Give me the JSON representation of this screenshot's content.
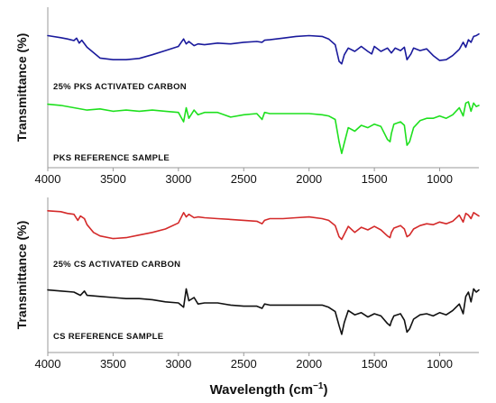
{
  "x_axis_label": "Wavelength (cm",
  "x_axis_label_sup": "−1",
  "x_axis_label_end": ")",
  "chart_data": [
    {
      "type": "line",
      "ylabel": "Transmittance (%)",
      "xlabel": "",
      "xlim": [
        4000,
        700
      ],
      "x_tick_labels": [
        "4000",
        "3500",
        "3000",
        "2500",
        "2000",
        "1500",
        "1000"
      ],
      "x_ticks": [
        4000,
        3500,
        3000,
        2500,
        2000,
        1500,
        1000
      ],
      "y_scale": "arbitrary (offset traces, no y ticks)",
      "series": [
        {
          "name": "25% PKS ACTIVATED CARBON",
          "color": "#1a1a9c",
          "x": [
            4000,
            3900,
            3850,
            3800,
            3780,
            3760,
            3740,
            3700,
            3600,
            3500,
            3400,
            3300,
            3200,
            3100,
            3000,
            2960,
            2940,
            2920,
            2880,
            2850,
            2800,
            2700,
            2600,
            2500,
            2400,
            2360,
            2340,
            2300,
            2200,
            2100,
            2000,
            1900,
            1850,
            1800,
            1770,
            1750,
            1730,
            1700,
            1650,
            1600,
            1550,
            1520,
            1500,
            1450,
            1400,
            1370,
            1340,
            1300,
            1270,
            1250,
            1220,
            1200,
            1150,
            1100,
            1050,
            1000,
            950,
            900,
            850,
            820,
            800,
            780,
            760,
            740,
            720,
            700
          ],
          "y": [
            0.88,
            0.83,
            0.8,
            0.76,
            0.82,
            0.7,
            0.77,
            0.6,
            0.34,
            0.3,
            0.3,
            0.33,
            0.42,
            0.52,
            0.62,
            0.8,
            0.68,
            0.74,
            0.64,
            0.68,
            0.66,
            0.7,
            0.68,
            0.72,
            0.74,
            0.72,
            0.77,
            0.78,
            0.82,
            0.86,
            0.88,
            0.86,
            0.8,
            0.66,
            0.26,
            0.2,
            0.42,
            0.58,
            0.5,
            0.62,
            0.5,
            0.44,
            0.62,
            0.5,
            0.58,
            0.46,
            0.58,
            0.52,
            0.6,
            0.3,
            0.44,
            0.58,
            0.52,
            0.56,
            0.4,
            0.28,
            0.3,
            0.4,
            0.55,
            0.72,
            0.6,
            0.78,
            0.72,
            0.86,
            0.88,
            0.92
          ]
        },
        {
          "name": "PKS REFERENCE SAMPLE",
          "color": "#1ee01e",
          "x": [
            4000,
            3900,
            3800,
            3700,
            3600,
            3500,
            3400,
            3300,
            3200,
            3100,
            3000,
            2960,
            2940,
            2920,
            2880,
            2850,
            2800,
            2700,
            2600,
            2500,
            2400,
            2360,
            2340,
            2300,
            2200,
            2100,
            2000,
            1900,
            1850,
            1800,
            1770,
            1750,
            1730,
            1700,
            1650,
            1600,
            1550,
            1500,
            1450,
            1400,
            1380,
            1370,
            1350,
            1300,
            1270,
            1250,
            1230,
            1200,
            1150,
            1100,
            1050,
            1000,
            950,
            900,
            850,
            820,
            800,
            780,
            760,
            740,
            720,
            700
          ],
          "y": [
            0.96,
            0.94,
            0.9,
            0.86,
            0.88,
            0.84,
            0.86,
            0.84,
            0.86,
            0.84,
            0.82,
            0.66,
            0.9,
            0.72,
            0.86,
            0.78,
            0.82,
            0.82,
            0.74,
            0.78,
            0.8,
            0.7,
            0.82,
            0.8,
            0.8,
            0.8,
            0.8,
            0.78,
            0.76,
            0.7,
            0.32,
            0.12,
            0.3,
            0.56,
            0.5,
            0.6,
            0.56,
            0.62,
            0.58,
            0.36,
            0.32,
            0.46,
            0.62,
            0.66,
            0.6,
            0.26,
            0.32,
            0.56,
            0.68,
            0.72,
            0.72,
            0.76,
            0.72,
            0.78,
            0.9,
            0.76,
            0.98,
            1.0,
            0.84,
            0.98,
            0.92,
            0.94
          ]
        }
      ]
    },
    {
      "type": "line",
      "ylabel": "Transmittance (%)",
      "xlabel": "Wavelength (cm−1)",
      "xlim": [
        4000,
        700
      ],
      "x_tick_labels": [
        "4000",
        "3500",
        "3000",
        "2500",
        "2000",
        "1500",
        "1000"
      ],
      "x_ticks": [
        4000,
        3500,
        3000,
        2500,
        2000,
        1500,
        1000
      ],
      "y_scale": "arbitrary (offset traces, no y ticks)",
      "series": [
        {
          "name": "25% CS ACTIVATED CARBON",
          "color": "#d42a2a",
          "x": [
            4000,
            3900,
            3850,
            3800,
            3770,
            3750,
            3720,
            3700,
            3650,
            3600,
            3500,
            3400,
            3300,
            3200,
            3100,
            3000,
            2960,
            2940,
            2920,
            2880,
            2850,
            2800,
            2700,
            2600,
            2500,
            2400,
            2360,
            2340,
            2300,
            2200,
            2100,
            2000,
            1900,
            1850,
            1800,
            1770,
            1750,
            1730,
            1700,
            1650,
            1600,
            1550,
            1500,
            1450,
            1400,
            1380,
            1370,
            1350,
            1300,
            1270,
            1250,
            1230,
            1200,
            1150,
            1100,
            1050,
            1000,
            950,
            900,
            850,
            820,
            800,
            780,
            760,
            740,
            720,
            700
          ],
          "y": [
            0.92,
            0.9,
            0.86,
            0.84,
            0.7,
            0.8,
            0.74,
            0.6,
            0.42,
            0.34,
            0.28,
            0.3,
            0.36,
            0.42,
            0.5,
            0.64,
            0.88,
            0.78,
            0.84,
            0.76,
            0.78,
            0.76,
            0.74,
            0.72,
            0.7,
            0.68,
            0.62,
            0.7,
            0.74,
            0.74,
            0.76,
            0.78,
            0.74,
            0.7,
            0.58,
            0.32,
            0.26,
            0.38,
            0.56,
            0.42,
            0.54,
            0.48,
            0.56,
            0.48,
            0.34,
            0.3,
            0.42,
            0.52,
            0.58,
            0.5,
            0.32,
            0.36,
            0.5,
            0.58,
            0.62,
            0.6,
            0.66,
            0.62,
            0.68,
            0.82,
            0.66,
            0.86,
            0.82,
            0.74,
            0.88,
            0.84,
            0.8
          ]
        },
        {
          "name": "CS REFERENCE SAMPLE",
          "color": "#111111",
          "x": [
            4000,
            3900,
            3800,
            3750,
            3720,
            3700,
            3600,
            3500,
            3400,
            3300,
            3200,
            3100,
            3000,
            2960,
            2940,
            2920,
            2880,
            2850,
            2800,
            2700,
            2600,
            2500,
            2400,
            2360,
            2340,
            2300,
            2200,
            2100,
            2000,
            1900,
            1850,
            1800,
            1770,
            1750,
            1730,
            1700,
            1650,
            1600,
            1550,
            1500,
            1450,
            1400,
            1380,
            1370,
            1350,
            1300,
            1270,
            1250,
            1230,
            1200,
            1150,
            1100,
            1050,
            1000,
            950,
            900,
            850,
            820,
            800,
            780,
            760,
            740,
            720,
            700
          ],
          "y": [
            0.94,
            0.92,
            0.9,
            0.84,
            0.92,
            0.84,
            0.82,
            0.8,
            0.78,
            0.78,
            0.76,
            0.72,
            0.7,
            0.62,
            0.96,
            0.74,
            0.8,
            0.68,
            0.7,
            0.7,
            0.66,
            0.64,
            0.64,
            0.6,
            0.68,
            0.66,
            0.66,
            0.66,
            0.66,
            0.66,
            0.62,
            0.54,
            0.28,
            0.12,
            0.34,
            0.56,
            0.48,
            0.52,
            0.44,
            0.5,
            0.46,
            0.32,
            0.28,
            0.36,
            0.46,
            0.5,
            0.38,
            0.16,
            0.22,
            0.4,
            0.48,
            0.5,
            0.46,
            0.52,
            0.48,
            0.56,
            0.68,
            0.5,
            0.82,
            0.9,
            0.72,
            0.96,
            0.9,
            0.94
          ]
        }
      ]
    }
  ]
}
